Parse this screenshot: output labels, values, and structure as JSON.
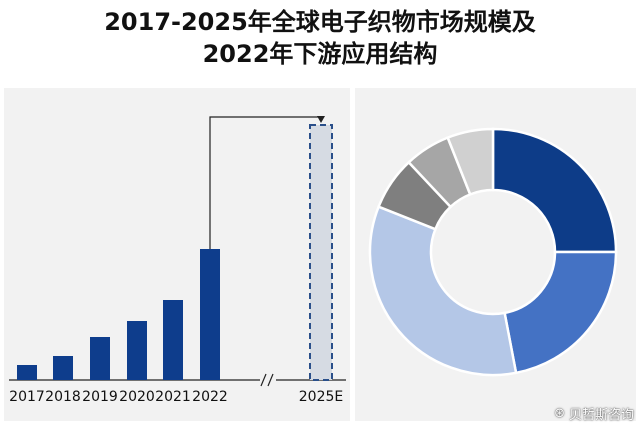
{
  "title": {
    "line1": "2017-2025年全球电子织物市场规模及",
    "line2": "2022年下游应用结构"
  },
  "watermark": "贝哲斯咨询",
  "colors": {
    "bar": "#0e3d8c",
    "forecast_border": "#2a4f8a",
    "forecast_fill": "#d6dbe3",
    "axis": "#222222",
    "arrow": "#222222"
  },
  "chart_data": [
    {
      "type": "bar",
      "categories": [
        "2017",
        "2018",
        "2019",
        "2020",
        "2021",
        "2022",
        "2025E"
      ],
      "values": [
        15,
        24,
        43,
        59,
        80,
        131,
        255
      ],
      "forecast_category": "2025E",
      "axis_break": true,
      "ylim": [
        0,
        260
      ],
      "grid": false
    },
    {
      "type": "pie",
      "donut": true,
      "slices": [
        {
          "value": 25,
          "color": "#0d3c88"
        },
        {
          "value": 22,
          "color": "#4472c4"
        },
        {
          "value": 34,
          "color": "#b4c7e7"
        },
        {
          "value": 7,
          "color": "#7f7f7f"
        },
        {
          "value": 6,
          "color": "#a6a6a6"
        },
        {
          "value": 6,
          "color": "#d0d0d0"
        }
      ]
    }
  ]
}
